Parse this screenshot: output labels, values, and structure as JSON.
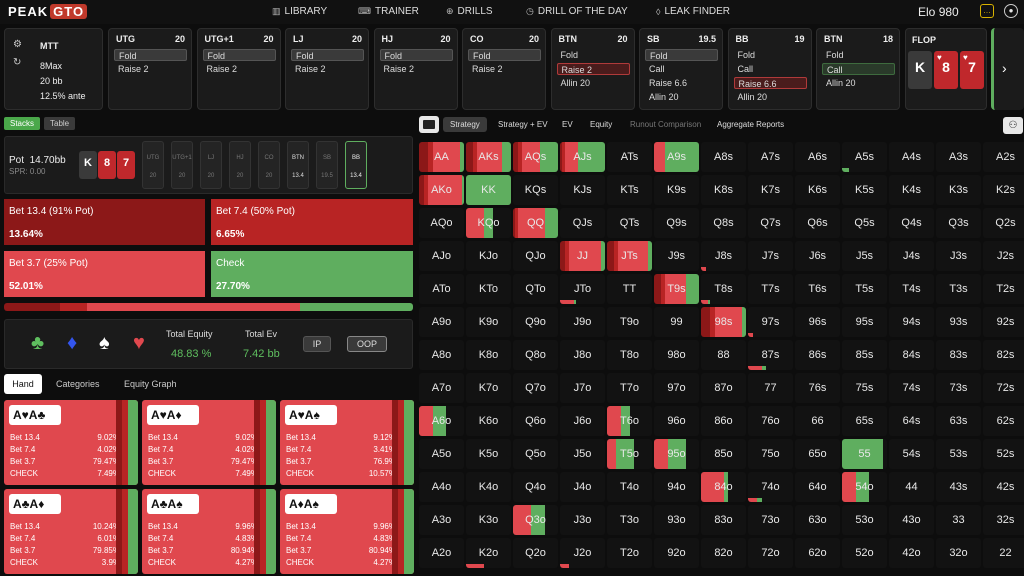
{
  "brand": {
    "part1": "PEAK",
    "part2": "GTO"
  },
  "nav": [
    {
      "label": "LIBRARY",
      "icon": "library-icon"
    },
    {
      "label": "TRAINER",
      "icon": "gamepad-icon"
    },
    {
      "label": "DRILLS",
      "icon": "target-icon"
    },
    {
      "label": "DRILL OF THE DAY",
      "icon": "calendar-icon"
    },
    {
      "label": "LEAK FINDER",
      "icon": "droplet-icon"
    }
  ],
  "elo": {
    "label": "Elo",
    "value": "980"
  },
  "info": {
    "format": "MTT",
    "table": "8Max",
    "stack": "20 bb",
    "ante": "12.5% ante"
  },
  "positions": [
    {
      "name": "UTG",
      "bb": "20",
      "options": [
        {
          "label": "Fold",
          "state": "fold"
        },
        {
          "label": "Raise 2",
          "state": "plain"
        }
      ]
    },
    {
      "name": "UTG+1",
      "bb": "20",
      "options": [
        {
          "label": "Fold",
          "state": "fold"
        },
        {
          "label": "Raise 2",
          "state": "plain"
        }
      ]
    },
    {
      "name": "LJ",
      "bb": "20",
      "options": [
        {
          "label": "Fold",
          "state": "fold"
        },
        {
          "label": "Raise 2",
          "state": "plain"
        }
      ]
    },
    {
      "name": "HJ",
      "bb": "20",
      "options": [
        {
          "label": "Fold",
          "state": "fold"
        },
        {
          "label": "Raise 2",
          "state": "plain"
        }
      ]
    },
    {
      "name": "CO",
      "bb": "20",
      "options": [
        {
          "label": "Fold",
          "state": "fold"
        },
        {
          "label": "Raise 2",
          "state": "plain"
        }
      ]
    },
    {
      "name": "BTN",
      "bb": "20",
      "options": [
        {
          "label": "Fold",
          "state": "plain"
        },
        {
          "label": "Raise 2",
          "state": "sel"
        },
        {
          "label": "Allin 20",
          "state": "plain"
        }
      ]
    },
    {
      "name": "SB",
      "bb": "19.5",
      "options": [
        {
          "label": "Fold",
          "state": "fold"
        },
        {
          "label": "Call",
          "state": "plain"
        },
        {
          "label": "Raise 6.6",
          "state": "plain"
        },
        {
          "label": "Allin 20",
          "state": "plain"
        }
      ]
    },
    {
      "name": "BB",
      "bb": "19",
      "options": [
        {
          "label": "Fold",
          "state": "plain"
        },
        {
          "label": "Call",
          "state": "plain"
        },
        {
          "label": "Raise 6.6",
          "state": "sel"
        },
        {
          "label": "Allin 20",
          "state": "plain"
        }
      ]
    },
    {
      "name": "BTN",
      "bb": "18",
      "options": [
        {
          "label": "Fold",
          "state": "plain"
        },
        {
          "label": "Call",
          "state": "call"
        },
        {
          "label": "Allin 20",
          "state": "plain"
        }
      ]
    }
  ],
  "flop": {
    "label": "FLOP",
    "cards": [
      {
        "rank": "K",
        "suit": "♠",
        "color": "dark"
      },
      {
        "rank": "8",
        "suit": "♥",
        "color": "red"
      },
      {
        "rank": "7",
        "suit": "♥",
        "color": "red"
      }
    ]
  },
  "view_toggle": {
    "stacks": "Stacks",
    "table": "Table"
  },
  "board": {
    "pot_label": "Pot",
    "pot": "14.70bb",
    "spr": "SPR: 0.00",
    "seats": [
      {
        "name": "UTG",
        "stack": "20",
        "active": false
      },
      {
        "name": "UTG+1",
        "stack": "20",
        "active": false
      },
      {
        "name": "LJ",
        "stack": "20",
        "active": false
      },
      {
        "name": "HJ",
        "stack": "20",
        "active": false
      },
      {
        "name": "CO",
        "stack": "20",
        "active": false
      },
      {
        "name": "BTN",
        "stack": "13.4",
        "active": true
      },
      {
        "name": "SB",
        "stack": "19.5",
        "active": false
      },
      {
        "name": "BB",
        "stack": "13.4",
        "active": true
      }
    ]
  },
  "actions": [
    {
      "label": "Bet 13.4 (91% Pot)",
      "value": "13.64%",
      "color": "#8c1818"
    },
    {
      "label": "Bet 7.4 (50% Pot)",
      "value": "6.65%",
      "color": "#b82424"
    },
    {
      "label": "Bet 3.7 (25% Pot)",
      "value": "52.01%",
      "color": "#e0484e"
    },
    {
      "label": "Check",
      "value": "27.70%",
      "color": "#5fae5f"
    }
  ],
  "distribution": [
    {
      "share": 0.1364,
      "color": "#8c1818"
    },
    {
      "share": 0.0665,
      "color": "#b82424"
    },
    {
      "share": 0.5201,
      "color": "#e0484e"
    },
    {
      "share": 0.277,
      "color": "#5fae5f"
    }
  ],
  "suits": [
    {
      "glyph": "♣",
      "color": "#5fbf5f"
    },
    {
      "glyph": "♦",
      "color": "#3355ee"
    },
    {
      "glyph": "♠",
      "color": "#ffffff"
    },
    {
      "glyph": "♥",
      "color": "#e0484e"
    }
  ],
  "equity": {
    "total_equity_label": "Total Equity",
    "total_equity": "48.83 %",
    "total_ev_label": "Total Ev",
    "total_ev": "7.42 bb",
    "ip": "IP",
    "oop": "OOP"
  },
  "left_tabs": [
    "Hand",
    "Categories",
    "Equity Graph"
  ],
  "hand_cards": [
    {
      "hand": "A♥A♣",
      "rows": [
        [
          "Bet 13.4",
          "9.02%"
        ],
        [
          "Bet 7.4",
          "4.02%"
        ],
        [
          "Bet 3.7",
          "79.47%"
        ],
        [
          "CHECK",
          "7.49%"
        ]
      ]
    },
    {
      "hand": "A♥A♦",
      "rows": [
        [
          "Bet 13.4",
          "9.02%"
        ],
        [
          "Bet 7.4",
          "4.02%"
        ],
        [
          "Bet 3.7",
          "79.47%"
        ],
        [
          "CHECK",
          "7.49%"
        ]
      ]
    },
    {
      "hand": "A♥A♠",
      "rows": [
        [
          "Bet 13.4",
          "9.12%"
        ],
        [
          "Bet 7.4",
          "3.41%"
        ],
        [
          "Bet 3.7",
          "76.9%"
        ],
        [
          "CHECK",
          "10.57%"
        ]
      ]
    },
    {
      "hand": "A♣A♦",
      "rows": [
        [
          "Bet 13.4",
          "10.24%"
        ],
        [
          "Bet 7.4",
          "6.01%"
        ],
        [
          "Bet 3.7",
          "79.85%"
        ],
        [
          "CHECK",
          "3.9%"
        ]
      ]
    },
    {
      "hand": "A♣A♠",
      "rows": [
        [
          "Bet 13.4",
          "9.96%"
        ],
        [
          "Bet 7.4",
          "4.83%"
        ],
        [
          "Bet 3.7",
          "80.94%"
        ],
        [
          "CHECK",
          "4.27%"
        ]
      ]
    },
    {
      "hand": "A♦A♠",
      "rows": [
        [
          "Bet 13.4",
          "9.96%"
        ],
        [
          "Bet 7.4",
          "4.83%"
        ],
        [
          "Bet 3.7",
          "80.94%"
        ],
        [
          "CHECK",
          "4.27%"
        ]
      ]
    }
  ],
  "right_tabs": [
    "Strategy",
    "Strategy + EV",
    "EV",
    "Equity",
    "Runout Comparison",
    "Aggregate Reports"
  ],
  "matrix_ranks": [
    "A",
    "K",
    "Q",
    "J",
    "T",
    "9",
    "8",
    "7",
    "6",
    "5",
    "4",
    "3",
    "2"
  ],
  "highlights": {
    "AA": [
      0.2,
      0.1,
      0.6,
      0.1
    ],
    "AKs": [
      0.15,
      0.1,
      0.55,
      0.2
    ],
    "AQs": [
      0.1,
      0.1,
      0.4,
      0.4
    ],
    "AJs": [
      0.05,
      0.05,
      0.3,
      0.6
    ],
    "A9s": [
      0,
      0,
      0.25,
      0.75
    ],
    "A5s": [
      0,
      0,
      0,
      0.15
    ],
    "AKo": [
      0.1,
      0.1,
      0.75,
      0.05
    ],
    "KK": [
      0,
      0,
      0,
      1
    ],
    "KQo": [
      0,
      0,
      0.4,
      0.2
    ],
    "QQ": [
      0.05,
      0.05,
      0.6,
      0.3
    ],
    "JJ": [
      0.1,
      0.1,
      0.7,
      0.1
    ],
    "JTs": [
      0.15,
      0.1,
      0.65,
      0.1
    ],
    "J8s": [
      0,
      0,
      0.1,
      0
    ],
    "JTo": [
      0,
      0,
      0.3,
      0.05
    ],
    "T9s": [
      0.15,
      0.1,
      0.45,
      0.3
    ],
    "T8s": [
      0,
      0,
      0.15,
      0.05
    ],
    "98s": [
      0.2,
      0.1,
      0.6,
      0.1
    ],
    "87s": [
      0,
      0,
      0.3,
      0.1
    ],
    "97s": [
      0,
      0,
      0.1,
      0
    ],
    "A6o": [
      0,
      0,
      0.3,
      0.3
    ],
    "T6o": [
      0,
      0,
      0.3,
      0.2
    ],
    "T5o": [
      0,
      0,
      0.2,
      0.4
    ],
    "95o": [
      0,
      0,
      0.3,
      0.4
    ],
    "55": [
      0,
      0,
      0,
      0.9
    ],
    "84o": [
      0,
      0,
      0.5,
      0.1
    ],
    "74o": [
      0,
      0,
      0.2,
      0.1
    ],
    "54o": [
      0,
      0,
      0.3,
      0.3
    ],
    "Q3o": [
      0,
      0,
      0.4,
      0.3
    ],
    "K2o": [
      0,
      0,
      0.4,
      0
    ],
    "J2o": [
      0,
      0,
      0.2,
      0
    ],
    "76o": [
      0,
      0,
      0,
      0
    ]
  }
}
